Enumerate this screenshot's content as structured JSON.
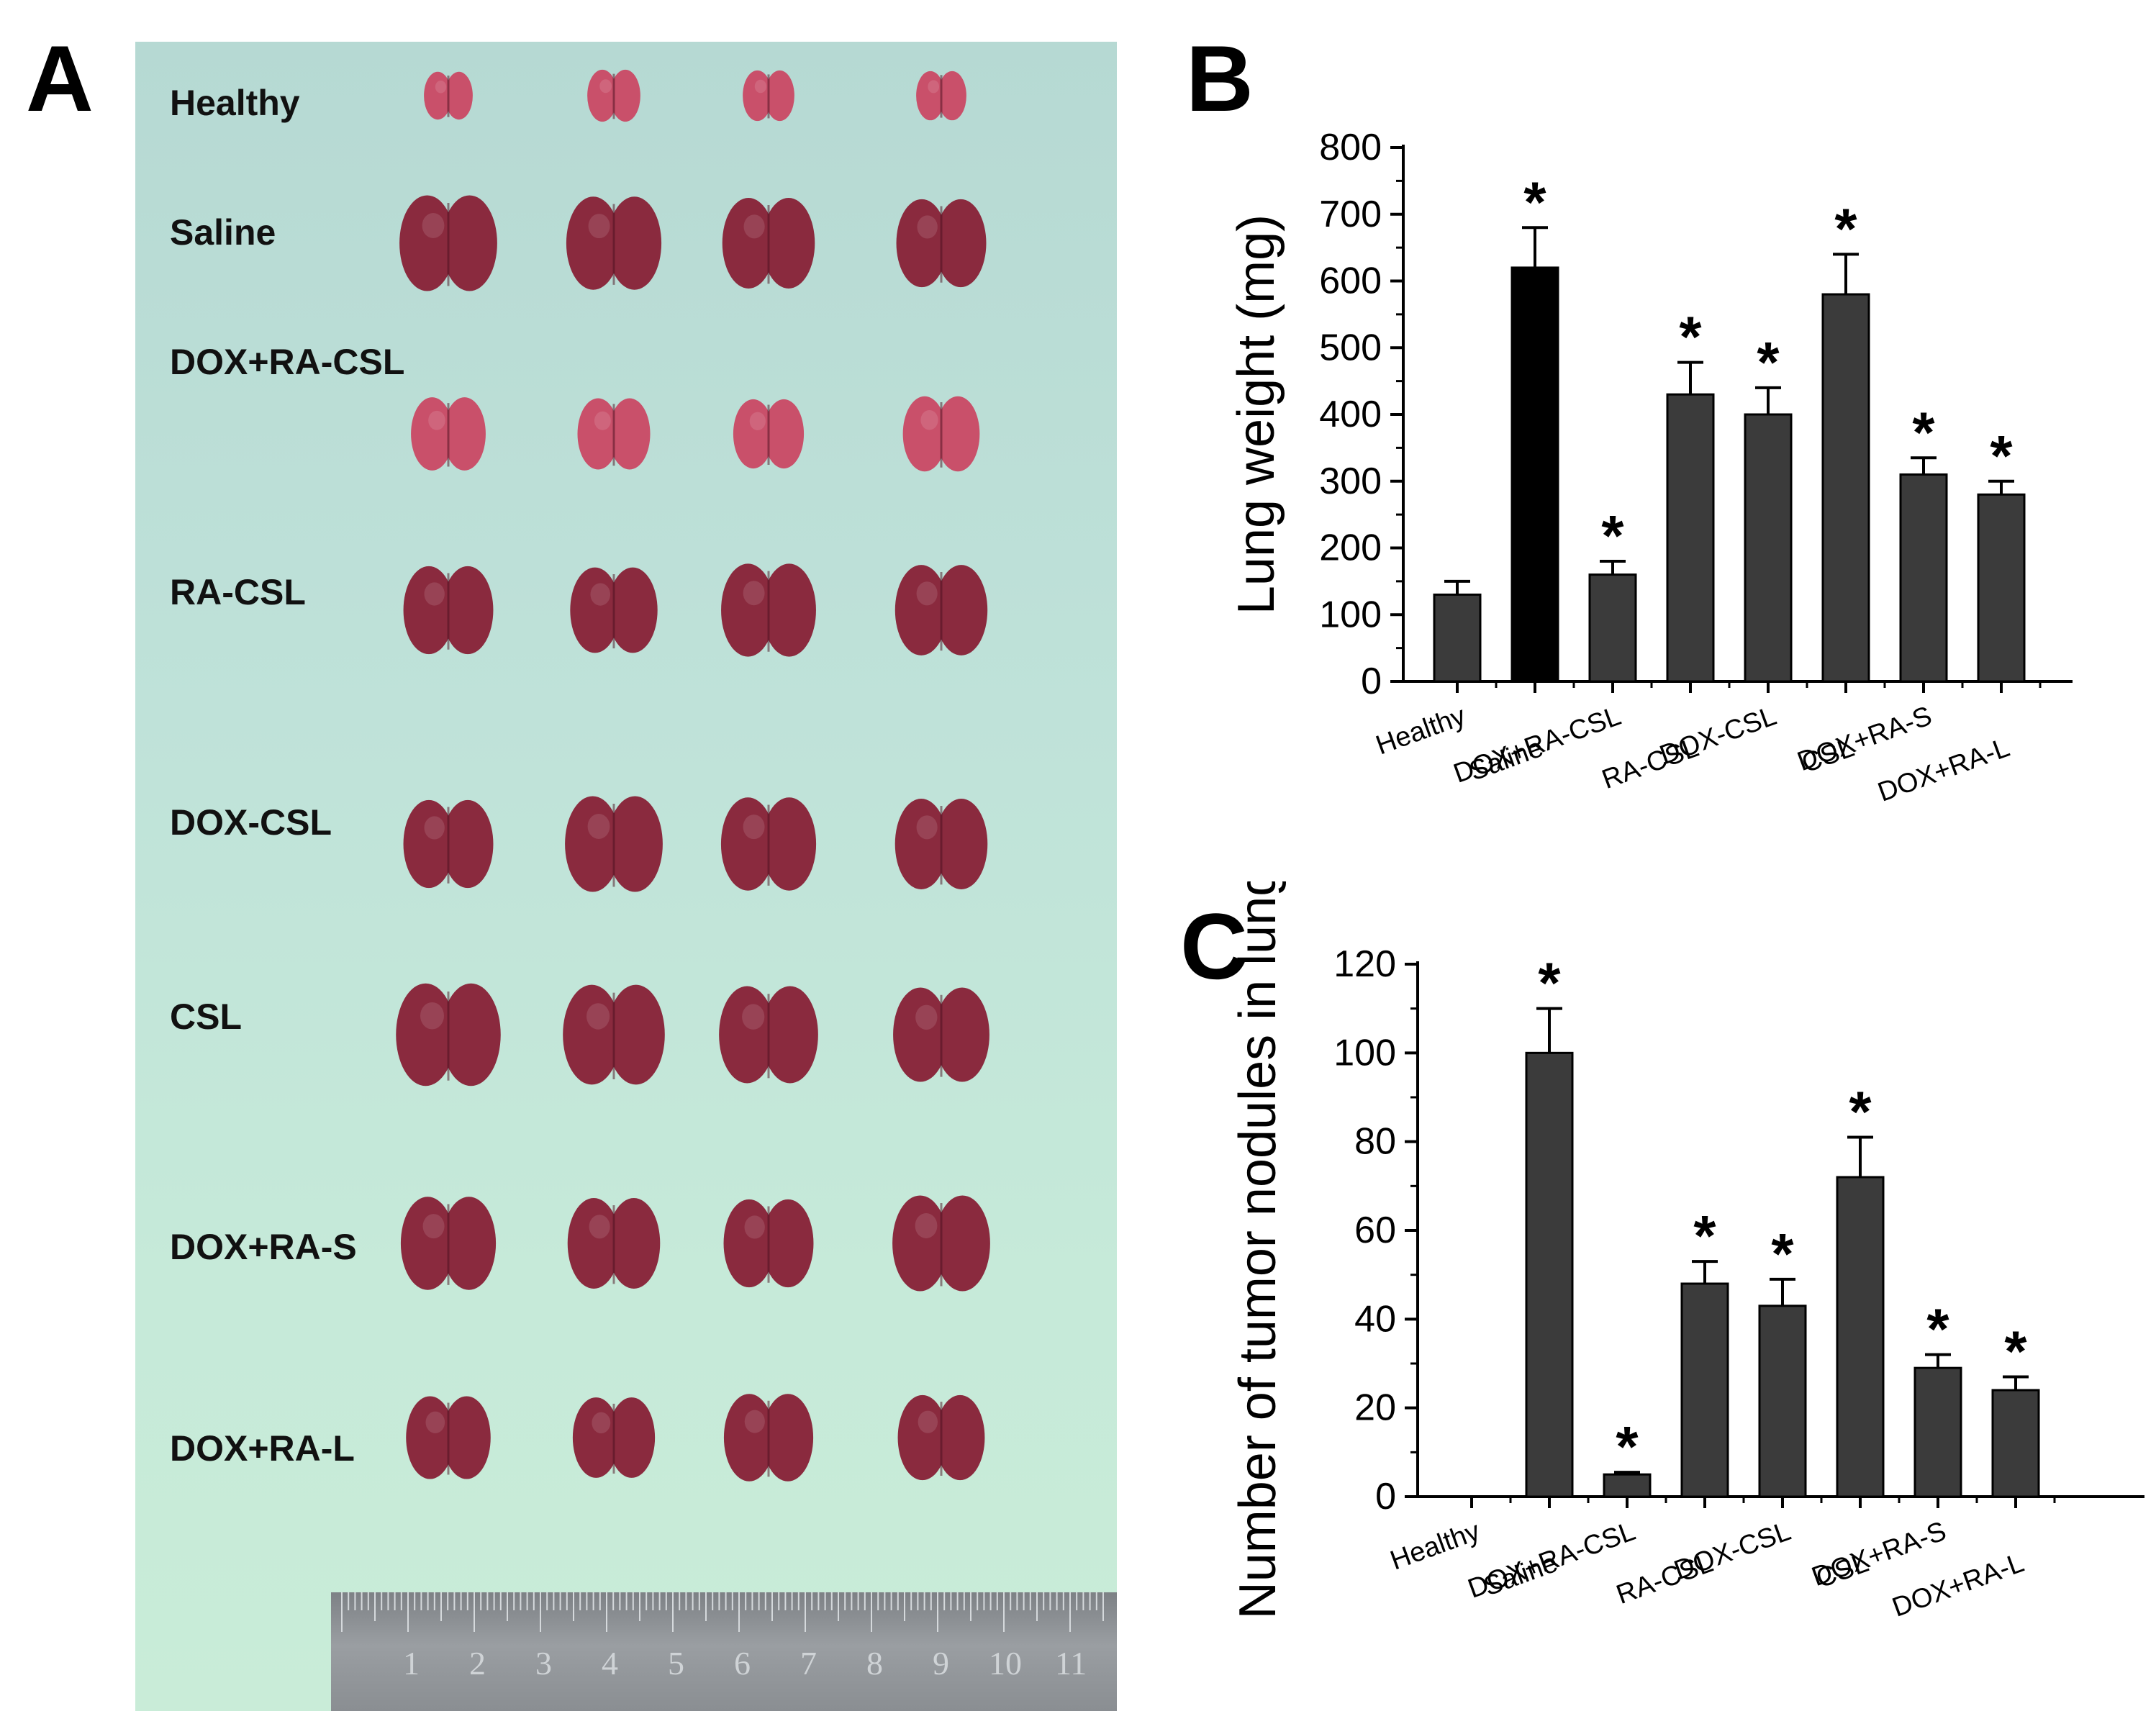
{
  "panels": {
    "a": {
      "letter": "A",
      "groups": [
        "Healthy",
        "Saline",
        "DOX+RA-CSL",
        "RA-CSL",
        "DOX-CSL",
        "CSL",
        "DOX+RA-S",
        "DOX+RA-L"
      ],
      "ruler_numbers": [
        "1",
        "2",
        "3",
        "4",
        "5",
        "6",
        "7",
        "8",
        "9",
        "10",
        "11"
      ]
    },
    "b": {
      "letter": "B"
    },
    "c": {
      "letter": "C"
    }
  },
  "colors": {
    "bar": "#3b3b3b",
    "bar_saline_b": "#000000",
    "photo_bg": "#bfe2d9",
    "lung": "#8a2a3e",
    "lung_pale": "#c9506a"
  },
  "chart_data": [
    {
      "type": "bar",
      "panel": "B",
      "title": "",
      "xlabel": "",
      "ylabel": "Lung weight (mg)",
      "categories": [
        "Healthy",
        "Saline",
        "DOX+RA-CSL",
        "RA-CSL",
        "DOX-CSL",
        "CSL",
        "DOX+RA-S",
        "DOX+RA-L"
      ],
      "values": [
        130,
        620,
        160,
        430,
        400,
        580,
        310,
        280
      ],
      "errors": [
        20,
        60,
        20,
        48,
        40,
        60,
        25,
        20
      ],
      "significance": [
        "",
        "*",
        "*",
        "*",
        "*",
        "*",
        "*",
        "*"
      ],
      "ylim": [
        0,
        800
      ],
      "yticks": [
        "0",
        "100",
        "200",
        "300",
        "400",
        "500",
        "600",
        "700",
        "800"
      ],
      "highlight_index": 1
    },
    {
      "type": "bar",
      "panel": "C",
      "title": "",
      "xlabel": "",
      "ylabel": "Number of tumor nodules in lungs",
      "categories": [
        "Healthy",
        "Saline",
        "DOX+RA-CSL",
        "RA-CSL",
        "DOX-CSL",
        "CSL",
        "DOX+RA-S",
        "DOX+RA-L"
      ],
      "values": [
        0,
        100,
        5,
        48,
        43,
        72,
        29,
        24
      ],
      "errors": [
        0,
        10,
        0.5,
        5,
        6,
        9,
        3,
        3
      ],
      "significance": [
        "",
        "*",
        "*",
        "*",
        "*",
        "*",
        "*",
        "*"
      ],
      "ylim": [
        0,
        120
      ],
      "yticks": [
        "0",
        "20",
        "40",
        "60",
        "80",
        "100",
        "120"
      ]
    }
  ]
}
